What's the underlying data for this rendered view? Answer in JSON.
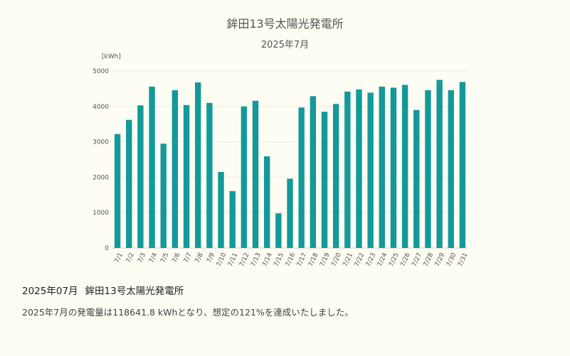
{
  "chart_data": {
    "type": "bar",
    "title": "鉾田13号太陽光発電所",
    "subtitle": "2025年7月",
    "ylabel": "[kWh]",
    "xlabel": "",
    "ylim": [
      0,
      5000
    ],
    "yticks": [
      "0",
      "1000",
      "2000",
      "3000",
      "4000",
      "5000"
    ],
    "grid": true,
    "bar_color": "#14999a",
    "categories": [
      "7/1",
      "7/2",
      "7/3",
      "7/4",
      "7/5",
      "7/6",
      "7/7",
      "7/8",
      "7/9",
      "7/10",
      "7/11",
      "7/12",
      "7/13",
      "7/14",
      "7/15",
      "7/16",
      "7/17",
      "7/18",
      "7/19",
      "7/20",
      "7/21",
      "7/22",
      "7/23",
      "7/24",
      "7/25",
      "7/26",
      "7/27",
      "7/28",
      "7/29",
      "7/30",
      "7/31"
    ],
    "values": [
      3220,
      3620,
      4030,
      4560,
      2950,
      4460,
      4040,
      4680,
      4100,
      2150,
      1610,
      4000,
      4160,
      2590,
      980,
      1960,
      3970,
      4290,
      3850,
      4070,
      4420,
      4480,
      4390,
      4560,
      4530,
      4610,
      3900,
      4460,
      4750,
      4460,
      4690
    ]
  },
  "summary": {
    "period": "2025年07月",
    "plant_name": "鉾田13号太陽光発電所",
    "text": "2025年7月の発電量は118641.8 kWhとなり、想定の121%を達成いたしました。"
  }
}
